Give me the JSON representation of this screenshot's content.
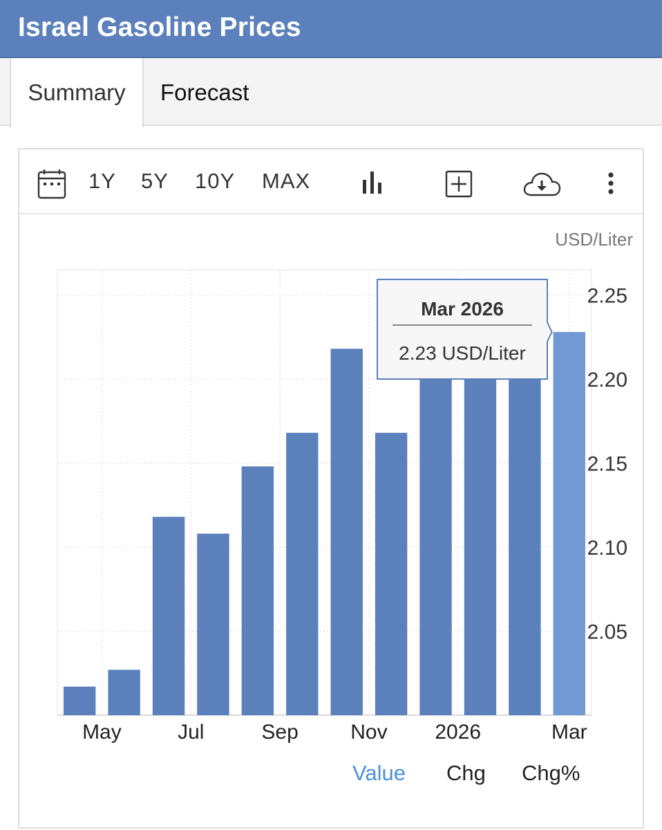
{
  "header": {
    "title": "Israel Gasoline Prices"
  },
  "tabs": [
    {
      "label": "Summary"
    },
    {
      "label": "Forecast"
    }
  ],
  "toolbar": {
    "ranges": [
      "1Y",
      "5Y",
      "10Y",
      "MAX"
    ],
    "icons": [
      "calendar-icon",
      "bar-chart-icon",
      "add-box-icon",
      "cloud-download-icon",
      "more-vertical-icon"
    ]
  },
  "tooltip": {
    "title": "Mar 2026",
    "value": "2.23 USD/Liter"
  },
  "links": {
    "value": "Value",
    "chg": "Chg",
    "chg_pct": "Chg%"
  },
  "colors": {
    "header": "#5b80bb",
    "bar": "#5b80bb",
    "bar_highlight": "#7399d3",
    "link_active": "#4a90d9"
  },
  "chart_data": {
    "type": "bar",
    "unit": "USD/Liter",
    "categories": [
      "Apr 2025",
      "May 2025",
      "Jun 2025",
      "Jul 2025",
      "Aug 2025",
      "Sep 2025",
      "Oct 2025",
      "Nov 2025",
      "Dec 2025",
      "Jan 2026",
      "Feb 2026",
      "Mar 2026"
    ],
    "values": [
      2.017,
      2.027,
      2.118,
      2.108,
      2.148,
      2.168,
      2.218,
      2.168,
      2.228,
      2.228,
      2.228,
      2.228
    ],
    "x_tick_labels": [
      "May",
      "Jul",
      "Sep",
      "Nov",
      "2026",
      "Mar"
    ],
    "y_ticks": [
      "2.05",
      "2.10",
      "2.15",
      "2.20",
      "2.25"
    ],
    "ylim": [
      2.0,
      2.265
    ],
    "highlighted": "Mar 2026",
    "grid": true
  }
}
